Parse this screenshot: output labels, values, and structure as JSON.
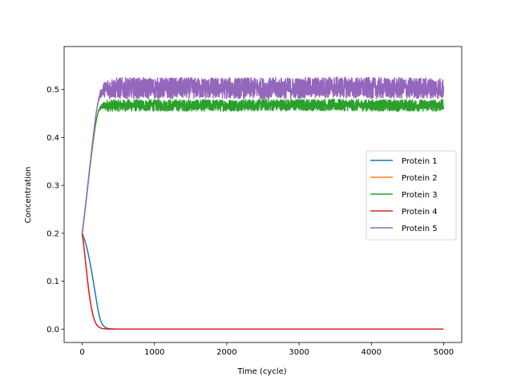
{
  "chart_data": {
    "type": "line",
    "title": "",
    "xlabel": "Time (cycle)",
    "ylabel": "Concentration",
    "xlim": [
      -250,
      5250
    ],
    "ylim": [
      -0.028,
      0.59
    ],
    "xticks": [
      0,
      1000,
      2000,
      3000,
      4000,
      5000
    ],
    "yticks": [
      0.0,
      0.1,
      0.2,
      0.3,
      0.4,
      0.5
    ],
    "ytick_labels": [
      "0.0",
      "0.1",
      "0.2",
      "0.3",
      "0.4",
      "0.5"
    ],
    "grid": false,
    "legend_position": "center-right",
    "series": [
      {
        "name": "Protein 1",
        "color": "#1f77b4",
        "x": [
          0,
          25,
          50,
          75,
          100,
          125,
          150,
          175,
          200,
          225,
          250,
          275,
          300,
          325,
          350,
          400,
          450,
          500,
          1000,
          2000,
          3000,
          4000,
          5000
        ],
        "y": [
          0.2,
          0.19,
          0.178,
          0.163,
          0.145,
          0.125,
          0.103,
          0.08,
          0.057,
          0.035,
          0.02,
          0.011,
          0.006,
          0.003,
          0.0015,
          0.0005,
          0.0002,
          0.0,
          0.0,
          0.0,
          0.0,
          0.0,
          0.0
        ]
      },
      {
        "name": "Protein 2",
        "color": "#ff7f0e",
        "x": [
          0,
          25,
          50,
          75,
          100,
          125,
          150,
          175,
          200,
          225,
          250,
          275,
          300,
          350,
          400,
          500,
          1000,
          2000,
          3000,
          4000,
          5000
        ],
        "y": [
          0.2,
          0.17,
          0.135,
          0.1,
          0.07,
          0.046,
          0.028,
          0.016,
          0.009,
          0.005,
          0.0025,
          0.0013,
          0.0007,
          0.0002,
          0.0001,
          0.0,
          0.0,
          0.0,
          0.0,
          0.0,
          0.0
        ]
      },
      {
        "name": "Protein 3",
        "color": "#2ca02c",
        "x": [
          0,
          25,
          50,
          75,
          100,
          125,
          150,
          175,
          200,
          225,
          250,
          275,
          300,
          350,
          400,
          500,
          1000,
          1500,
          2000,
          2500,
          3000,
          3500,
          4000,
          4500,
          5000
        ],
        "y": [
          0.2,
          0.23,
          0.262,
          0.295,
          0.328,
          0.36,
          0.39,
          0.418,
          0.44,
          0.455,
          0.462,
          0.465,
          0.466,
          0.467,
          0.467,
          0.467,
          0.467,
          0.467,
          0.467,
          0.468,
          0.468,
          0.468,
          0.467,
          0.467,
          0.467
        ],
        "noise_amplitude": 0.012
      },
      {
        "name": "Protein 4",
        "color": "#d62728",
        "x": [
          0,
          25,
          50,
          75,
          100,
          125,
          150,
          175,
          200,
          225,
          250,
          275,
          300,
          350,
          400,
          500,
          1000,
          2000,
          3000,
          4000,
          5000
        ],
        "y": [
          0.2,
          0.17,
          0.135,
          0.1,
          0.07,
          0.046,
          0.028,
          0.016,
          0.009,
          0.005,
          0.0025,
          0.0013,
          0.0007,
          0.0002,
          0.0001,
          0.0,
          0.0,
          0.0,
          0.0,
          0.0,
          0.0
        ]
      },
      {
        "name": "Protein 5",
        "color": "#9467bd",
        "x": [
          0,
          25,
          50,
          75,
          100,
          125,
          150,
          175,
          200,
          225,
          250,
          275,
          300,
          350,
          400,
          500,
          1000,
          1500,
          2000,
          2500,
          3000,
          3500,
          4000,
          4500,
          5000
        ],
        "y": [
          0.2,
          0.23,
          0.263,
          0.297,
          0.332,
          0.366,
          0.398,
          0.43,
          0.458,
          0.478,
          0.49,
          0.497,
          0.5,
          0.502,
          0.503,
          0.503,
          0.503,
          0.503,
          0.503,
          0.503,
          0.503,
          0.505,
          0.503,
          0.503,
          0.503
        ],
        "noise_amplitude": 0.022
      }
    ]
  }
}
